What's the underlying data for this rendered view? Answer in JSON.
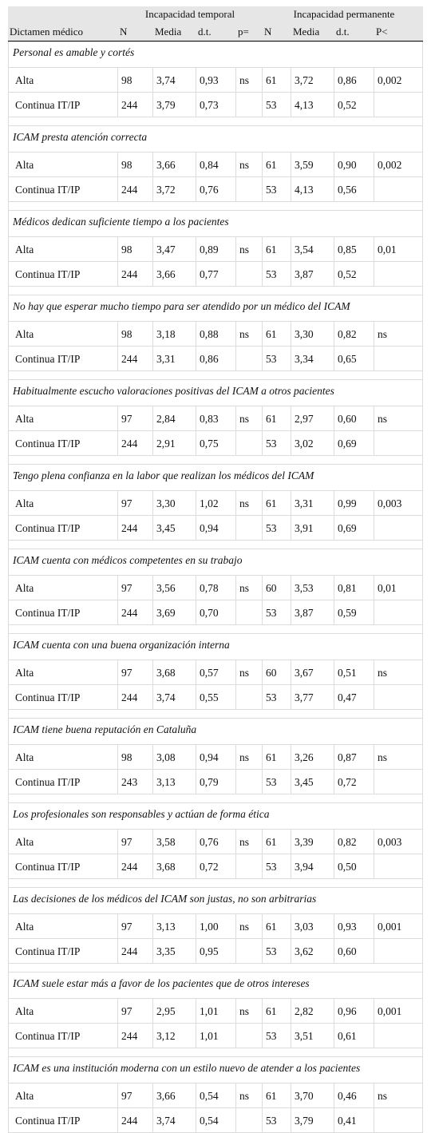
{
  "header": {
    "group_temporal": "Incapacidad temporal",
    "group_permanente": "Incapacidad permanente",
    "columns": [
      "Dictamen médico",
      "N",
      "Media",
      "d.t.",
      "p=",
      "N",
      "Media",
      "d.t.",
      "P<"
    ]
  },
  "sections": [
    {
      "title": "Personal es amable y cortés",
      "rows": [
        [
          "Alta",
          "98",
          "3,74",
          "0,93",
          "ns",
          "61",
          "3,72",
          "0,86",
          "0,002"
        ],
        [
          "Continua IT/IP",
          "244",
          "3,79",
          "0,73",
          "",
          "53",
          "4,13",
          "0,52",
          ""
        ]
      ]
    },
    {
      "title": "ICAM presta atención correcta",
      "rows": [
        [
          "Alta",
          "98",
          "3,66",
          "0,84",
          "ns",
          "61",
          "3,59",
          "0,90",
          "0,002"
        ],
        [
          "Continua IT/IP",
          "244",
          "3,72",
          "0,76",
          "",
          "53",
          "4,13",
          "0,56",
          ""
        ]
      ]
    },
    {
      "title": "Médicos dedican suficiente tiempo a los pacientes",
      "rows": [
        [
          "Alta",
          "98",
          "3,47",
          "0,89",
          "ns",
          "61",
          "3,54",
          "0,85",
          "0,01"
        ],
        [
          "Continua IT/IP",
          "244",
          "3,66",
          "0,77",
          "",
          "53",
          "3,87",
          "0,52",
          ""
        ]
      ]
    },
    {
      "title": "No hay que esperar mucho tiempo para ser atendido por un médico del ICAM",
      "rows": [
        [
          "Alta",
          "98",
          "3,18",
          "0,88",
          "ns",
          "61",
          "3,30",
          "0,82",
          "ns"
        ],
        [
          "Continua IT/IP",
          "244",
          "3,31",
          "0,86",
          "",
          "53",
          "3,34",
          "0,65",
          ""
        ]
      ]
    },
    {
      "title": "Habitualmente escucho valoraciones positivas del ICAM a otros pacientes",
      "rows": [
        [
          "Alta",
          "97",
          "2,84",
          "0,83",
          "ns",
          "61",
          "2,97",
          "0,60",
          "ns"
        ],
        [
          "Continua IT/IP",
          "244",
          "2,91",
          "0,75",
          "",
          "53",
          "3,02",
          "0,69",
          ""
        ]
      ]
    },
    {
      "title": "Tengo plena confianza en la labor que realizan los médicos del ICAM",
      "rows": [
        [
          "Alta",
          "97",
          "3,30",
          "1,02",
          "ns",
          "61",
          "3,31",
          "0,99",
          "0,003"
        ],
        [
          "Continua IT/IP",
          "244",
          "3,45",
          "0,94",
          "",
          "53",
          "3,91",
          "0,69",
          ""
        ]
      ]
    },
    {
      "title": "ICAM cuenta con médicos competentes en su trabajo",
      "rows": [
        [
          "Alta",
          "97",
          "3,56",
          "0,78",
          "ns",
          "60",
          "3,53",
          "0,81",
          "0,01"
        ],
        [
          "Continua IT/IP",
          "244",
          "3,69",
          "0,70",
          "",
          "53",
          "3,87",
          "0,59",
          ""
        ]
      ]
    },
    {
      "title": "ICAM cuenta con una buena organización interna",
      "rows": [
        [
          "Alta",
          "97",
          "3,68",
          "0,57",
          "ns",
          "60",
          "3,67",
          "0,51",
          "ns"
        ],
        [
          "Continua IT/IP",
          "244",
          "3,74",
          "0,55",
          "",
          "53",
          "3,77",
          "0,47",
          ""
        ]
      ]
    },
    {
      "title": "ICAM tiene buena reputación en Cataluña",
      "rows": [
        [
          "Alta",
          "98",
          "3,08",
          "0,94",
          "ns",
          "61",
          "3,26",
          "0,87",
          "ns"
        ],
        [
          "Continua IT/IP",
          "243",
          "3,13",
          "0,79",
          "",
          "53",
          "3,45",
          "0,72",
          ""
        ]
      ]
    },
    {
      "title": "Los profesionales son responsables y actúan de forma ética",
      "rows": [
        [
          "Alta",
          "97",
          "3,58",
          "0,76",
          "ns",
          "61",
          "3,39",
          "0,82",
          "0,003"
        ],
        [
          "Continua IT/IP",
          "244",
          "3,68",
          "0,72",
          "",
          "53",
          "3,94",
          "0,50",
          ""
        ]
      ]
    },
    {
      "title": "Las decisiones de los médicos del ICAM son justas, no son arbitrarias",
      "rows": [
        [
          "Alta",
          "97",
          "3,13",
          "1,00",
          "ns",
          "61",
          "3,03",
          "0,93",
          "0,001"
        ],
        [
          "Continua IT/IP",
          "244",
          "3,35",
          "0,95",
          "",
          "53",
          "3,62",
          "0,60",
          ""
        ]
      ]
    },
    {
      "title": "ICAM suele estar más a favor de los pacientes que de otros intereses",
      "rows": [
        [
          "Alta",
          "97",
          "2,95",
          "1,01",
          "ns",
          "61",
          "2,82",
          "0,96",
          "0,001"
        ],
        [
          "Continua IT/IP",
          "244",
          "3,12",
          "1,01",
          "",
          "53",
          "3,51",
          "0,61",
          ""
        ]
      ]
    },
    {
      "title": "ICAM es una institución moderna con un estilo nuevo de atender a los pacientes",
      "rows": [
        [
          "Alta",
          "97",
          "3,66",
          "0,54",
          "ns",
          "61",
          "3,70",
          "0,46",
          "ns"
        ],
        [
          "Continua IT/IP",
          "244",
          "3,74",
          "0,54",
          "",
          "53",
          "3,79",
          "0,41",
          ""
        ]
      ]
    }
  ]
}
